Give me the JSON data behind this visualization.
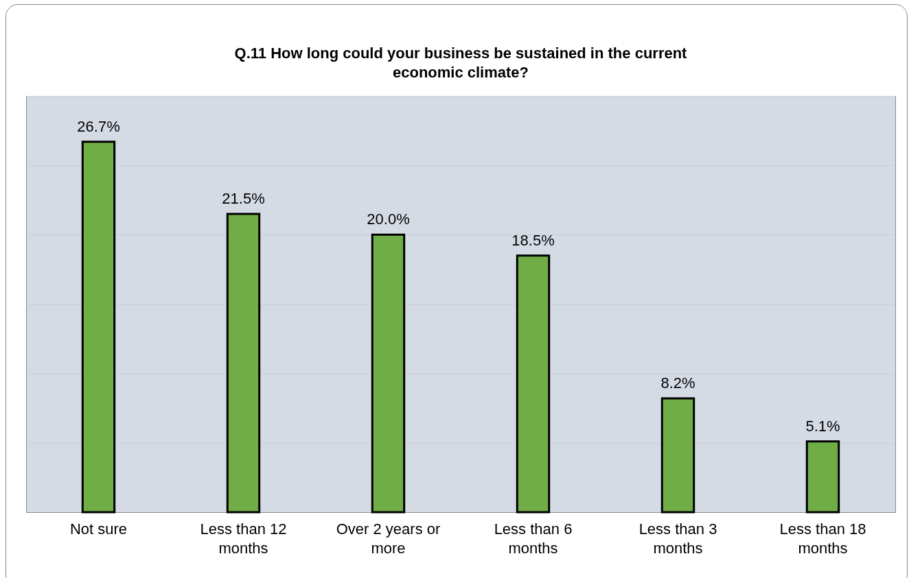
{
  "chart_data": {
    "type": "bar",
    "title": "Q.11 How long could your business be sustained in the current economic climate?",
    "categories": [
      "Not sure",
      "Less than 12 months",
      "Over 2 years or more",
      "Less than 6 months",
      "Less than 3 months",
      "Less than 18 months"
    ],
    "values": [
      26.7,
      21.5,
      20.0,
      18.5,
      8.2,
      5.1
    ],
    "value_labels": [
      "26.7%",
      "21.5%",
      "20.0%",
      "18.5%",
      "8.2%",
      "5.1%"
    ],
    "color": "#70ad47",
    "ylim": [
      0,
      30
    ],
    "yticks": [
      {
        "value": 0,
        "label": null
      },
      {
        "value": 5,
        "label": null
      },
      {
        "value": 10,
        "label": null
      },
      {
        "value": 15,
        "label": null
      },
      {
        "value": 20,
        "label": null
      },
      {
        "value": 25,
        "label": null
      },
      {
        "value": 30,
        "label": null
      }
    ],
    "grid": "y",
    "tick_labels": "x"
  }
}
